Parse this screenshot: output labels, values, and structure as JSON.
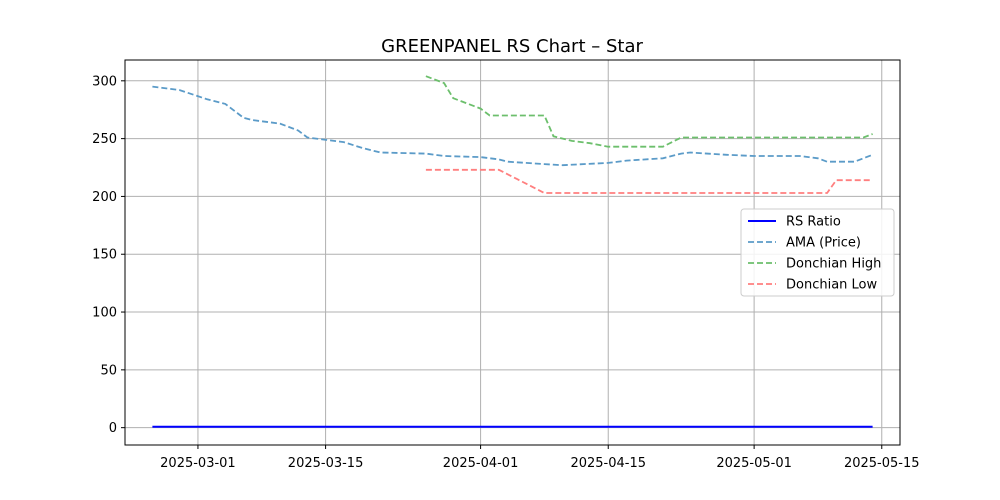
{
  "chart_data": {
    "type": "line",
    "title": "GREENPANEL RS Chart – Star",
    "xlabel": "",
    "ylabel": "",
    "x_axis": "date",
    "xlim": [
      "2025-02-21",
      "2025-05-17"
    ],
    "ylim": [
      -15,
      318
    ],
    "xticks": [
      "2025-03-01",
      "2025-03-15",
      "2025-04-01",
      "2025-04-15",
      "2025-05-01",
      "2025-05-15"
    ],
    "yticks": [
      0,
      50,
      100,
      150,
      200,
      250,
      300
    ],
    "grid": true,
    "legend_position": "center-right",
    "series": [
      {
        "name": "RS Ratio",
        "style": "solid",
        "color": "#0000ff",
        "points": [
          [
            "2025-02-24",
            0.8
          ],
          [
            "2025-05-14",
            0.8
          ]
        ]
      },
      {
        "name": "AMA (Price)",
        "style": "dashed",
        "color": "#5b9bc8",
        "points": [
          [
            "2025-02-24",
            295
          ],
          [
            "2025-02-27",
            292
          ],
          [
            "2025-03-02",
            284
          ],
          [
            "2025-03-04",
            280
          ],
          [
            "2025-03-06",
            268
          ],
          [
            "2025-03-07",
            266
          ],
          [
            "2025-03-10",
            263
          ],
          [
            "2025-03-12",
            257
          ],
          [
            "2025-03-13",
            251
          ],
          [
            "2025-03-17",
            247
          ],
          [
            "2025-03-19",
            242
          ],
          [
            "2025-03-21",
            238
          ],
          [
            "2025-03-26",
            237
          ],
          [
            "2025-03-28",
            235
          ],
          [
            "2025-04-01",
            234
          ],
          [
            "2025-04-03",
            232
          ],
          [
            "2025-04-04",
            230
          ],
          [
            "2025-04-08",
            228
          ],
          [
            "2025-04-10",
            227
          ],
          [
            "2025-04-15",
            229
          ],
          [
            "2025-04-17",
            231
          ],
          [
            "2025-04-21",
            233
          ],
          [
            "2025-04-23",
            237
          ],
          [
            "2025-04-24",
            238
          ],
          [
            "2025-04-28",
            236
          ],
          [
            "2025-05-01",
            235
          ],
          [
            "2025-05-06",
            235
          ],
          [
            "2025-05-08",
            233
          ],
          [
            "2025-05-09",
            230
          ],
          [
            "2025-05-12",
            230
          ],
          [
            "2025-05-14",
            236
          ]
        ]
      },
      {
        "name": "Donchian High",
        "style": "dashed",
        "color": "#6cbf6c",
        "points": [
          [
            "2025-03-26",
            304
          ],
          [
            "2025-03-28",
            298
          ],
          [
            "2025-03-29",
            285
          ],
          [
            "2025-04-01",
            276
          ],
          [
            "2025-04-02",
            270
          ],
          [
            "2025-04-08",
            270
          ],
          [
            "2025-04-09",
            252
          ],
          [
            "2025-04-11",
            248
          ],
          [
            "2025-04-13",
            246
          ],
          [
            "2025-04-15",
            243
          ],
          [
            "2025-04-21",
            243
          ],
          [
            "2025-04-23",
            251
          ],
          [
            "2025-05-13",
            251
          ],
          [
            "2025-05-14",
            254
          ]
        ]
      },
      {
        "name": "Donchian Low",
        "style": "dashed",
        "color": "#ff7f7f",
        "points": [
          [
            "2025-03-26",
            223
          ],
          [
            "2025-04-03",
            223
          ],
          [
            "2025-04-05",
            215
          ],
          [
            "2025-04-08",
            203
          ],
          [
            "2025-05-09",
            203
          ],
          [
            "2025-05-10",
            214
          ],
          [
            "2025-05-14",
            214
          ]
        ]
      }
    ]
  }
}
